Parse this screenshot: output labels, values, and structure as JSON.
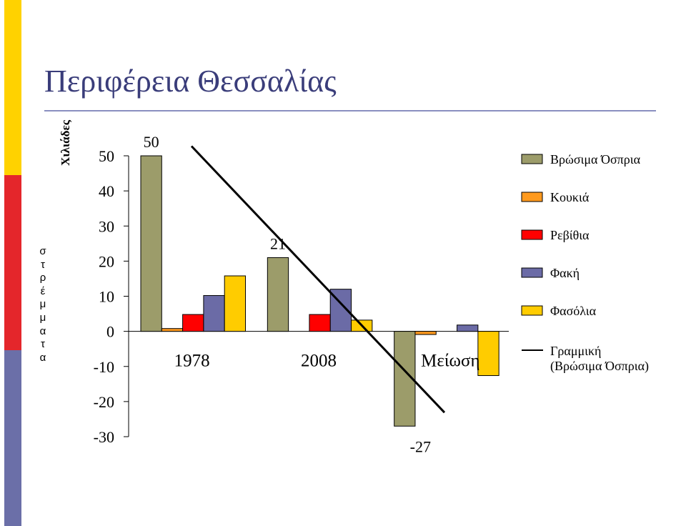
{
  "slide": {
    "title": "Περιφέρεια Θεσσαλίας",
    "side_word": [
      "σ",
      "τ",
      "ρ",
      "έ",
      "μ",
      "μ",
      "α",
      "τ",
      "α"
    ],
    "accent_colors": [
      "#ffd200",
      "#e4262b",
      "#6b6fa8"
    ]
  },
  "chart_data": {
    "type": "bar",
    "ylabel": "Χιλιάδες",
    "ylim": [
      -30,
      50
    ],
    "yticks": [
      50,
      40,
      30,
      20,
      10,
      0,
      -10,
      -20,
      -30
    ],
    "categories": [
      "1978",
      "2008",
      "Μείωση"
    ],
    "series": [
      {
        "name": "Βρώσιμα Όσπρια",
        "color": "#9c9c6a",
        "values": [
          50,
          21,
          -27
        ]
      },
      {
        "name": "Κουκιά",
        "color": "#ff9a1e",
        "values": [
          0.8,
          0,
          -0.9
        ]
      },
      {
        "name": "Ρεβίθια",
        "color": "#ff0000",
        "values": [
          4.8,
          4.8,
          0
        ]
      },
      {
        "name": "Φακή",
        "color": "#6b6ba6",
        "values": [
          10.2,
          12,
          1.8
        ]
      },
      {
        "name": "Φασόλια",
        "color": "#ffcc00",
        "values": [
          15.8,
          3.2,
          -12.6
        ]
      }
    ],
    "data_labels": [
      {
        "series": 0,
        "category": 0,
        "text": "50"
      },
      {
        "series": 0,
        "category": 1,
        "text": "21"
      },
      {
        "series": 0,
        "category": 2,
        "text": "-27"
      }
    ],
    "trendline": {
      "name": "Γραμμική (Βρώσιμα Όσπρια)",
      "color": "#000000",
      "values": [
        52.6,
        19.8,
        -23.4
      ]
    },
    "legend": {
      "position": "right",
      "entries": [
        "Βρώσιμα Όσπρια",
        "Κουκιά",
        "Ρεβίθια",
        "Φακή",
        "Φασόλια"
      ],
      "trend_label_line1": "Γραμμική",
      "trend_label_line2": "(Βρώσιμα Όσπρια)"
    },
    "grid": false
  }
}
